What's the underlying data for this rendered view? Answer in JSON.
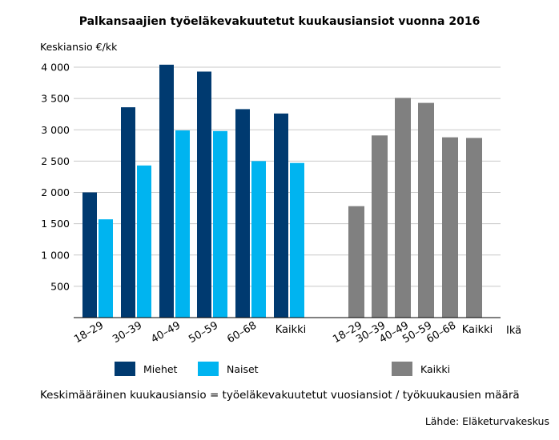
{
  "chart_data": {
    "type": "bar",
    "title": "Palkansaajien työeläkevakuutetut kuukausiansiot vuonna 2016",
    "ylabel": "Keskiansio €/kk",
    "xlabel": "Ikä",
    "ylim": [
      0,
      4000
    ],
    "yticks": [
      500,
      1000,
      1500,
      2000,
      2500,
      3000,
      3500,
      4000
    ],
    "ytick_labels": [
      "500",
      "1 000",
      "1 500",
      "2 000",
      "2 500",
      "3 000",
      "3 500",
      "4 000"
    ],
    "grid": true,
    "groups": [
      {
        "name": "gender",
        "categories": [
          "18–29",
          "30–39",
          "40–49",
          "50–59",
          "60–68",
          "Kaikki"
        ],
        "series": [
          {
            "name": "Miehet",
            "color": "#003a70",
            "values": [
              2000,
              3360,
              4040,
              3930,
              3330,
              3260
            ]
          },
          {
            "name": "Naiset",
            "color": "#00b4f0",
            "values": [
              1570,
              2430,
              2990,
              2980,
              2500,
              2470
            ]
          }
        ]
      },
      {
        "name": "all",
        "categories": [
          "18–29",
          "30–39",
          "40–49",
          "50–59",
          "60–68",
          "Kaikki"
        ],
        "series": [
          {
            "name": "Kaikki",
            "color": "#808080",
            "values": [
              1780,
              2910,
              3510,
              3430,
              2880,
              2870
            ]
          }
        ]
      }
    ],
    "legend": [
      {
        "label": "Miehet",
        "color": "#003a70"
      },
      {
        "label": "Naiset",
        "color": "#00b4f0"
      },
      {
        "label": "Kaikki",
        "color": "#808080"
      }
    ],
    "footnote": "Keskimääräinen kuukausiansio = työeläkevakuutetut vuosiansiot / työkuukausien määrä",
    "source": "Lähde: Eläketurvakeskus"
  }
}
